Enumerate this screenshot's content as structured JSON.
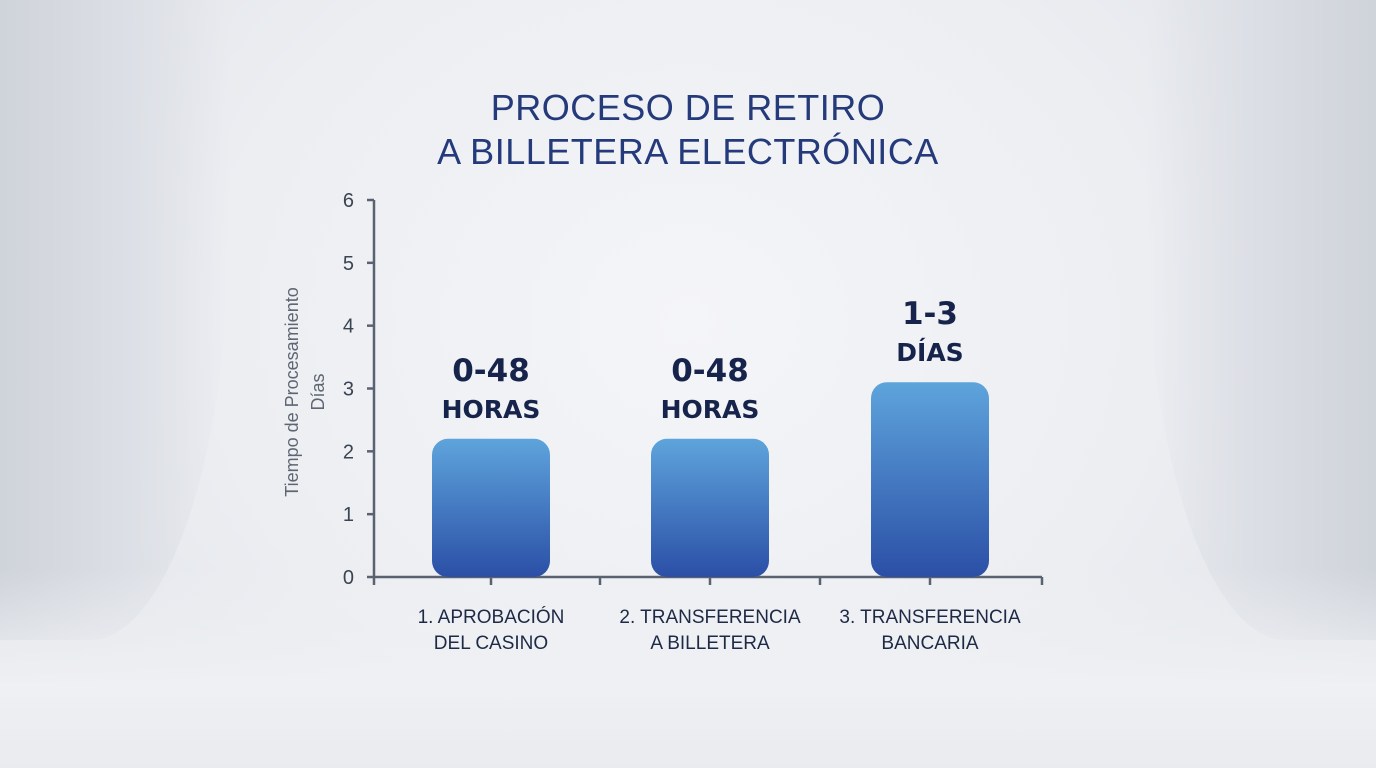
{
  "title_lines": [
    "PROCESO DE RETIRO",
    "A BILLETERA ELECTRÓNICA"
  ],
  "chart_data": {
    "type": "bar",
    "title": "PROCESO DE RETIRO A BILLETERA ELECTRÓNICA",
    "ylabel": [
      "Tiempo de Procesamiento",
      "Días"
    ],
    "ylim": [
      0,
      6
    ],
    "yticks": [
      "0",
      "1",
      "2",
      "3",
      "4",
      "5",
      "6"
    ],
    "grid": false,
    "categories": [
      [
        "1. APROBACIÓN",
        "DEL CASINO"
      ],
      [
        "2. TRANSFERENCIA",
        "A BILLETERA"
      ],
      [
        "3. TRANSFERENCIA",
        "BANCARIA"
      ]
    ],
    "values": [
      2.2,
      2.2,
      3.1
    ],
    "data_labels": [
      [
        "0-48",
        "HORAS"
      ],
      [
        "0-48",
        "HORAS"
      ],
      [
        "1-3",
        "DÍAS"
      ]
    ],
    "colors": {
      "bar_top": "#5ea4dc",
      "bar_bottom": "#2b4fa6",
      "axis": "#5a6270",
      "title": "#243a7a",
      "label": "#16234a"
    }
  }
}
